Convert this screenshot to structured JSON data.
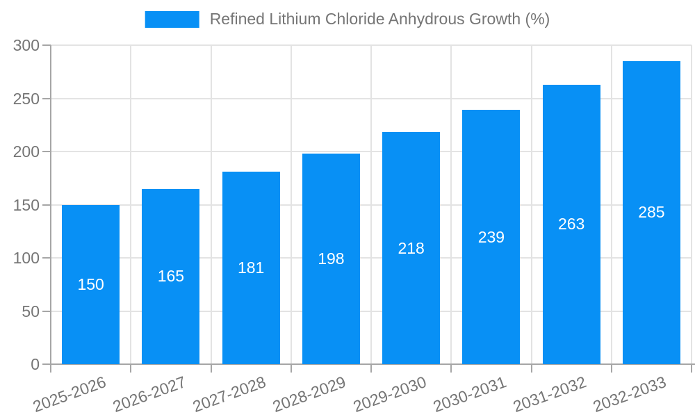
{
  "legend": {
    "label": "Refined Lithium Chloride Anhydrous Growth (%)"
  },
  "chart_data": {
    "type": "bar",
    "title": "Refined Lithium Chloride Anhydrous Growth (%)",
    "categories": [
      "2025-2026",
      "2026-2027",
      "2027-2028",
      "2028-2029",
      "2029-2030",
      "2030-2031",
      "2031-2032",
      "2032-2033"
    ],
    "values": [
      150,
      165,
      181,
      198,
      218,
      239,
      263,
      285
    ],
    "xlabel": "",
    "ylabel": "",
    "ylim": [
      0,
      300
    ],
    "yticks": [
      0,
      50,
      100,
      150,
      200,
      250,
      300
    ],
    "grid": true,
    "legend_position": "top",
    "x_label_rotation_deg": -20,
    "colors": {
      "bar": "#0890f5",
      "grid": "#e3e3e3",
      "axis": "#a6a6a6",
      "tick_text": "#757575",
      "value_label": "#ffffff",
      "background": "#ffffff"
    }
  }
}
